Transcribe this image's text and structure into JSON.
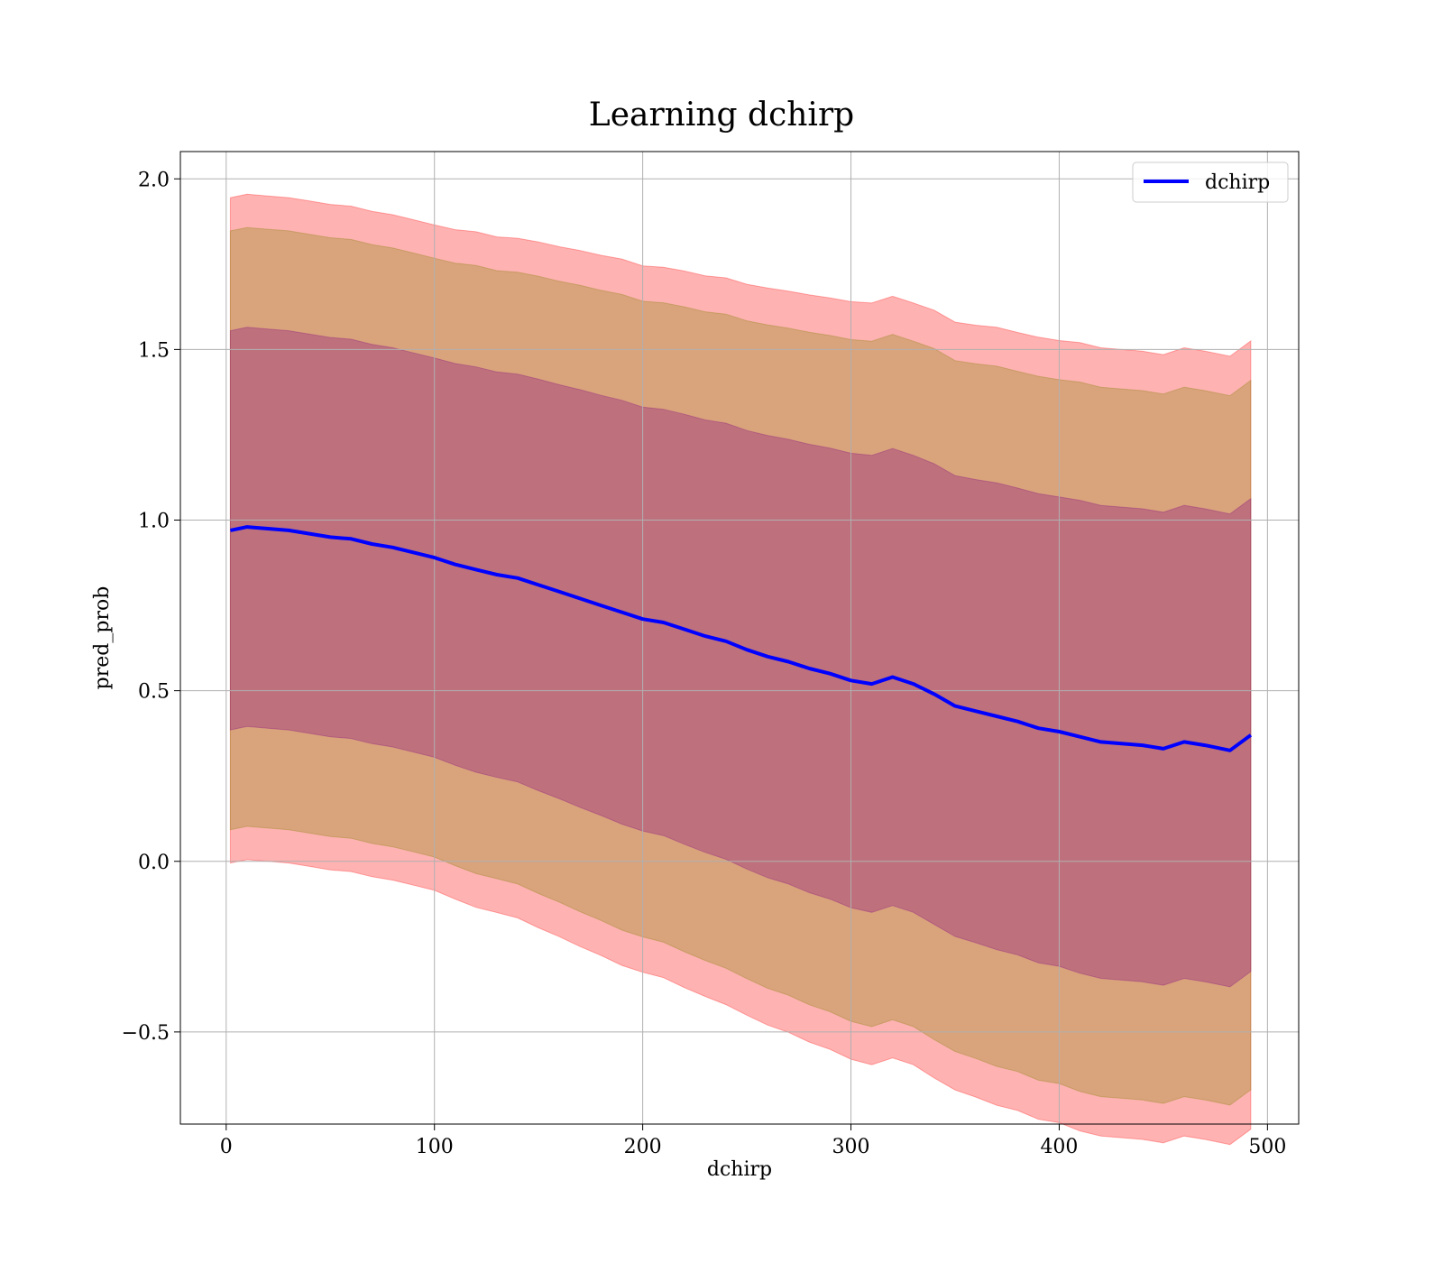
{
  "chart_data": {
    "type": "area",
    "title": "Learning dchirp",
    "xlabel": "dchirp",
    "ylabel": "pred_prob",
    "xlim": [
      -22,
      515
    ],
    "ylim": [
      -0.77,
      2.08
    ],
    "xticks": [
      0,
      100,
      200,
      300,
      400,
      500
    ],
    "xtick_labels": [
      "0",
      "100",
      "200",
      "300",
      "400",
      "500"
    ],
    "yticks": [
      -0.5,
      0.0,
      0.5,
      1.0,
      1.5,
      2.0
    ],
    "ytick_labels": [
      "−0.5",
      "0.0",
      "0.5",
      "1.0",
      "1.5",
      "2.0"
    ],
    "grid": true,
    "legend": {
      "position": "top-right",
      "entries": [
        {
          "label": "dchirp",
          "color": "#0000ff"
        }
      ]
    },
    "bands": [
      {
        "sigma": 3,
        "color": "#ff0000",
        "alpha": 0.3
      },
      {
        "sigma": 2.7,
        "color": "#808000",
        "alpha": 0.3
      },
      {
        "sigma": 1.8,
        "color": "#800080",
        "alpha": 0.3
      }
    ],
    "series": [
      {
        "name": "dchirp",
        "color": "#0000ff",
        "x": [
          2,
          10,
          20,
          30,
          40,
          50,
          60,
          70,
          80,
          90,
          100,
          110,
          120,
          130,
          140,
          150,
          160,
          170,
          180,
          190,
          200,
          210,
          220,
          230,
          240,
          250,
          260,
          270,
          280,
          290,
          300,
          310,
          320,
          330,
          340,
          350,
          360,
          370,
          380,
          390,
          400,
          410,
          420,
          430,
          440,
          450,
          460,
          470,
          482,
          492
        ],
        "y": [
          0.97,
          0.98,
          0.975,
          0.97,
          0.96,
          0.95,
          0.945,
          0.93,
          0.92,
          0.905,
          0.89,
          0.87,
          0.855,
          0.84,
          0.83,
          0.81,
          0.79,
          0.77,
          0.75,
          0.73,
          0.71,
          0.7,
          0.68,
          0.66,
          0.645,
          0.62,
          0.6,
          0.585,
          0.565,
          0.55,
          0.53,
          0.52,
          0.54,
          0.52,
          0.49,
          0.455,
          0.44,
          0.425,
          0.41,
          0.39,
          0.38,
          0.365,
          0.35,
          0.345,
          0.34,
          0.33,
          0.35,
          0.34,
          0.325,
          0.37
        ],
        "band_half_width": [
          0.325,
          0.325,
          0.325,
          0.325,
          0.325,
          0.325,
          0.325,
          0.325,
          0.325,
          0.325,
          0.325,
          0.327,
          0.33,
          0.33,
          0.332,
          0.335,
          0.337,
          0.34,
          0.342,
          0.345,
          0.345,
          0.347,
          0.35,
          0.352,
          0.355,
          0.357,
          0.36,
          0.362,
          0.365,
          0.367,
          0.37,
          0.372,
          0.372,
          0.372,
          0.375,
          0.375,
          0.377,
          0.38,
          0.38,
          0.382,
          0.382,
          0.385,
          0.385,
          0.385,
          0.385,
          0.385,
          0.385,
          0.385,
          0.385,
          0.385
        ]
      }
    ]
  }
}
